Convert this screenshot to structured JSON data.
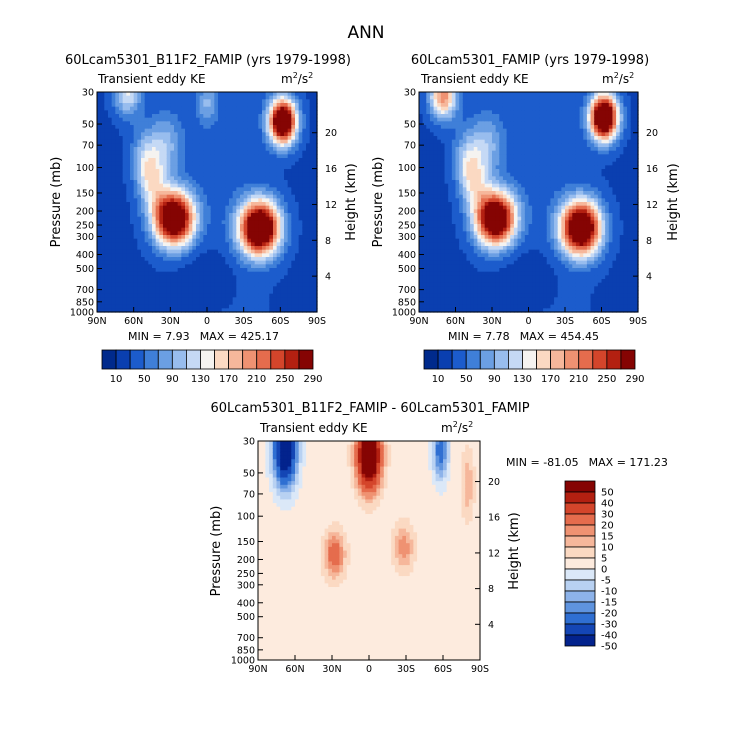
{
  "page_title": "ANN",
  "chart_data": [
    {
      "type": "heatmap",
      "title": "60Lcam5301_B11F2_FAMIP (yrs 1979-1998)",
      "subtitle_left": "Transient eddy KE",
      "units_base": "m",
      "units_exp1": "2",
      "units_mid": "/s",
      "units_exp2": "2",
      "ylabel": "Pressure (mb)",
      "ylabel_right": "Height (km)",
      "x_ticks": [
        "90N",
        "60N",
        "30N",
        "0",
        "30S",
        "60S",
        "90S"
      ],
      "y_ticks": [
        "30",
        "50",
        "70",
        "100",
        "150",
        "200",
        "250",
        "300",
        "400",
        "500",
        "700",
        "850",
        "1000"
      ],
      "height_ticks": [
        "20",
        "16",
        "12",
        "8",
        "4"
      ],
      "min_label": "MIN =",
      "min_value": "7.93",
      "max_label": "MAX =",
      "max_value": "425.17",
      "colorbar_labels": [
        "10",
        "50",
        "90",
        "130",
        "170",
        "210",
        "250",
        "290"
      ],
      "colorbar_colors": [
        "#002a8c",
        "#0a3fb0",
        "#1c5ccc",
        "#3f7fd8",
        "#6b9fe3",
        "#98bdee",
        "#c5d9f5",
        "#f5f3f0",
        "#fbd9c2",
        "#f6b79b",
        "#ef9272",
        "#e56c4d",
        "#d4452b",
        "#b32011",
        "#850403"
      ],
      "features": [
        {
          "lat": 65,
          "p": 31,
          "amp": 105,
          "type": "jet_strato"
        },
        {
          "lat": -62,
          "p": 48,
          "amp": 345,
          "type": "jet_strato"
        },
        {
          "lat": 27,
          "p": 225,
          "amp": 340,
          "type": "jet"
        },
        {
          "lat": -43,
          "p": 262,
          "amp": 360,
          "type": "jet"
        },
        {
          "lat": 0,
          "p": 36,
          "amp": 55,
          "type": "equator_upper"
        }
      ]
    },
    {
      "type": "heatmap",
      "title": "60Lcam5301_FAMIP (yrs 1979-1998)",
      "subtitle_left": "Transient eddy KE",
      "units_base": "m",
      "units_exp1": "2",
      "units_mid": "/s",
      "units_exp2": "2",
      "ylabel": "Pressure (mb)",
      "ylabel_right": "Height (km)",
      "x_ticks": [
        "90N",
        "60N",
        "30N",
        "0",
        "30S",
        "60S",
        "90S"
      ],
      "y_ticks": [
        "30",
        "50",
        "70",
        "100",
        "150",
        "200",
        "250",
        "300",
        "400",
        "500",
        "700",
        "850",
        "1000"
      ],
      "height_ticks": [
        "20",
        "16",
        "12",
        "8",
        "4"
      ],
      "min_label": "MIN =",
      "min_value": "7.78",
      "max_label": "MAX =",
      "max_value": "454.45",
      "colorbar_labels": [
        "10",
        "50",
        "90",
        "130",
        "170",
        "210",
        "250",
        "290"
      ],
      "colorbar_colors": [
        "#002a8c",
        "#0a3fb0",
        "#1c5ccc",
        "#3f7fd8",
        "#6b9fe3",
        "#98bdee",
        "#c5d9f5",
        "#f5f3f0",
        "#fbd9c2",
        "#f6b79b",
        "#ef9272",
        "#e56c4d",
        "#d4452b",
        "#b32011",
        "#850403"
      ],
      "features": [
        {
          "lat": 70,
          "p": 32,
          "amp": 180,
          "type": "jet_strato"
        },
        {
          "lat": -62,
          "p": 45,
          "amp": 370,
          "type": "jet_strato"
        },
        {
          "lat": 27,
          "p": 225,
          "amp": 330,
          "type": "jet"
        },
        {
          "lat": -43,
          "p": 262,
          "amp": 350,
          "type": "jet"
        }
      ]
    },
    {
      "type": "heatmap",
      "title": "60Lcam5301_B11F2_FAMIP - 60Lcam5301_FAMIP",
      "subtitle_left": "Transient eddy KE",
      "units_base": "m",
      "units_exp1": "2",
      "units_mid": "/s",
      "units_exp2": "2",
      "ylabel": "Pressure (mb)",
      "ylabel_right": "Height (km)",
      "x_ticks": [
        "90N",
        "60N",
        "30N",
        "0",
        "30S",
        "60S",
        "90S"
      ],
      "y_ticks": [
        "30",
        "50",
        "70",
        "100",
        "150",
        "200",
        "250",
        "300",
        "400",
        "500",
        "700",
        "850",
        "1000"
      ],
      "height_ticks": [
        "20",
        "16",
        "12",
        "8",
        "4"
      ],
      "min_label": "MIN =",
      "min_value": "-81.05",
      "max_label": "MAX =",
      "max_value": "171.23",
      "colorbar_labels": [
        "50",
        "40",
        "30",
        "20",
        "15",
        "10",
        "5",
        "0",
        "-5",
        "-10",
        "-15",
        "-20",
        "-30",
        "-40",
        "-50"
      ],
      "colorbar_colors": [
        "#850403",
        "#b32011",
        "#d4452b",
        "#e56c4d",
        "#ef9272",
        "#f6b79b",
        "#fbd9c2",
        "#fdebde",
        "#dbe8f8",
        "#b8d1f2",
        "#8db3ea",
        "#5f94df",
        "#2f6fd2",
        "#1446b5",
        "#03238d"
      ],
      "features": [
        {
          "lat": 68,
          "p": 35,
          "amp": -60,
          "type": "neg_upper"
        },
        {
          "lat": -58,
          "p": 35,
          "amp": -28,
          "type": "neg_upper_small"
        },
        {
          "lat": 0,
          "p": 38,
          "amp": 80,
          "type": "pos_equator"
        },
        {
          "lat": 28,
          "p": 185,
          "amp": 24,
          "type": "pos_mid"
        },
        {
          "lat": -28,
          "p": 165,
          "amp": 16,
          "type": "pos_mid"
        },
        {
          "lat": -80,
          "p": 60,
          "amp": 12,
          "type": "pos_small"
        }
      ]
    }
  ]
}
